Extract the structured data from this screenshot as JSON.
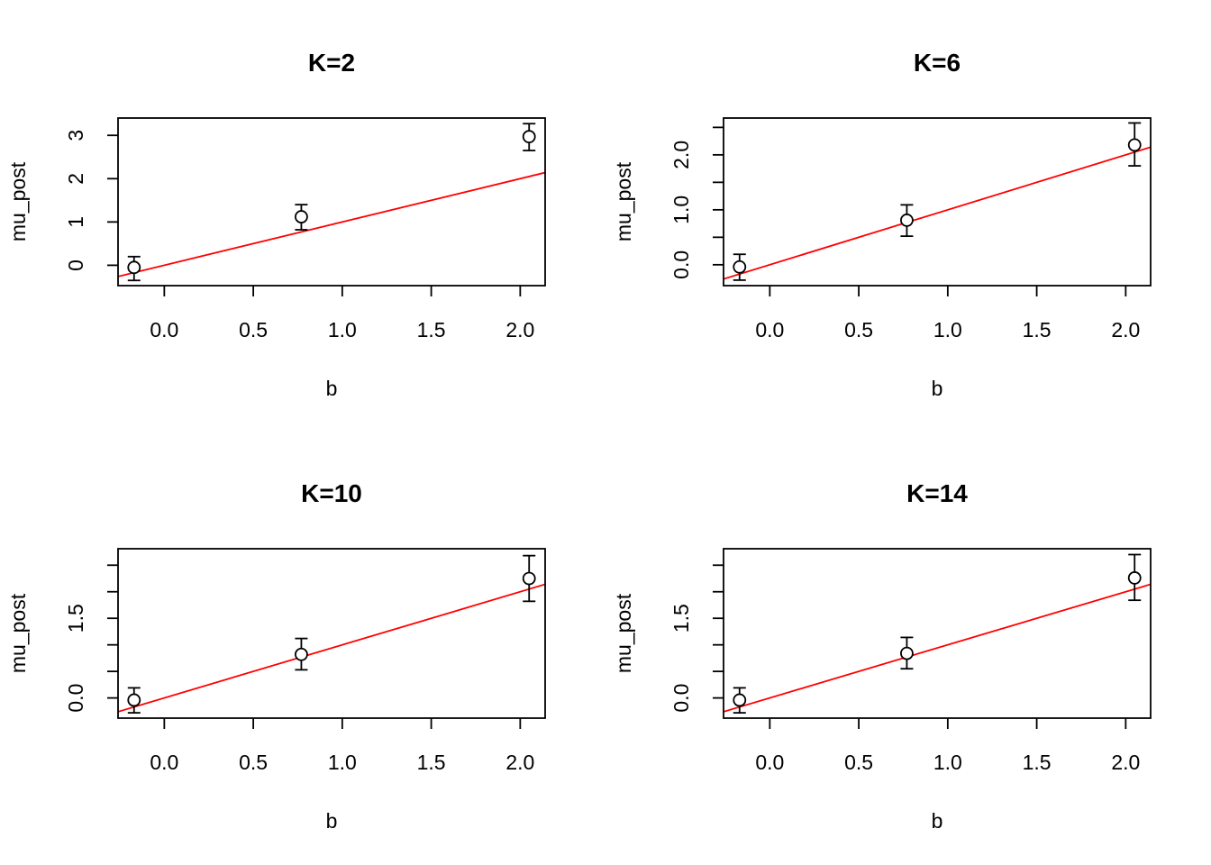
{
  "chart_data": [
    {
      "type": "scatter",
      "title": "K=2",
      "xlabel": "b",
      "ylabel": "mu_post",
      "xlim": [
        -0.26,
        2.14
      ],
      "ylim": [
        -0.47,
        3.4
      ],
      "xticks": [
        0.0,
        0.5,
        1.0,
        1.5,
        2.0
      ],
      "xtick_labels": [
        "0.0",
        "0.5",
        "1.0",
        "1.5",
        "2.0"
      ],
      "yticks": [
        0,
        1,
        2,
        3
      ],
      "ytick_labels": [
        "0",
        "1",
        "2",
        "3"
      ],
      "points": [
        {
          "x": -0.17,
          "y": -0.05,
          "lo": -0.35,
          "hi": 0.2
        },
        {
          "x": 0.77,
          "y": 1.12,
          "lo": 0.82,
          "hi": 1.4
        },
        {
          "x": 2.05,
          "y": 2.97,
          "lo": 2.65,
          "hi": 3.27
        }
      ],
      "line": {
        "intercept": 0.0,
        "slope": 1.0,
        "color": "#ff0000"
      },
      "grid": false,
      "legend": "none"
    },
    {
      "type": "scatter",
      "title": "K=6",
      "xlabel": "b",
      "ylabel": "mu_post",
      "xlim": [
        -0.26,
        2.14
      ],
      "ylim": [
        -0.38,
        2.67
      ],
      "xticks": [
        0.0,
        0.5,
        1.0,
        1.5,
        2.0
      ],
      "xtick_labels": [
        "0.0",
        "0.5",
        "1.0",
        "1.5",
        "2.0"
      ],
      "yticks": [
        0.0,
        0.5,
        1.0,
        1.5,
        2.0,
        2.5
      ],
      "ytick_labels": [
        "0.0",
        "",
        "1.0",
        "",
        "2.0",
        ""
      ],
      "points": [
        {
          "x": -0.17,
          "y": -0.04,
          "lo": -0.28,
          "hi": 0.19
        },
        {
          "x": 0.77,
          "y": 0.81,
          "lo": 0.52,
          "hi": 1.09
        },
        {
          "x": 2.05,
          "y": 2.18,
          "lo": 1.8,
          "hi": 2.58
        }
      ],
      "line": {
        "intercept": 0.0,
        "slope": 1.0,
        "color": "#ff0000"
      },
      "grid": false,
      "legend": "none"
    },
    {
      "type": "scatter",
      "title": "K=10",
      "xlabel": "b",
      "ylabel": "mu_post",
      "xlim": [
        -0.26,
        2.14
      ],
      "ylim": [
        -0.38,
        2.81
      ],
      "xticks": [
        0.0,
        0.5,
        1.0,
        1.5,
        2.0
      ],
      "xtick_labels": [
        "0.0",
        "0.5",
        "1.0",
        "1.5",
        "2.0"
      ],
      "yticks": [
        0.0,
        0.5,
        1.0,
        1.5,
        2.0,
        2.5
      ],
      "ytick_labels": [
        "0.0",
        "",
        "",
        "1.5",
        "",
        ""
      ],
      "points": [
        {
          "x": -0.17,
          "y": -0.04,
          "lo": -0.28,
          "hi": 0.19
        },
        {
          "x": 0.77,
          "y": 0.82,
          "lo": 0.53,
          "hi": 1.12
        },
        {
          "x": 2.05,
          "y": 2.25,
          "lo": 1.82,
          "hi": 2.68
        }
      ],
      "line": {
        "intercept": 0.0,
        "slope": 1.0,
        "color": "#ff0000"
      },
      "grid": false,
      "legend": "none"
    },
    {
      "type": "scatter",
      "title": "K=14",
      "xlabel": "b",
      "ylabel": "mu_post",
      "xlim": [
        -0.26,
        2.14
      ],
      "ylim": [
        -0.38,
        2.81
      ],
      "xticks": [
        0.0,
        0.5,
        1.0,
        1.5,
        2.0
      ],
      "xtick_labels": [
        "0.0",
        "0.5",
        "1.0",
        "1.5",
        "2.0"
      ],
      "yticks": [
        0.0,
        0.5,
        1.0,
        1.5,
        2.0,
        2.5
      ],
      "ytick_labels": [
        "0.0",
        "",
        "",
        "1.5",
        "",
        ""
      ],
      "points": [
        {
          "x": -0.17,
          "y": -0.04,
          "lo": -0.28,
          "hi": 0.19
        },
        {
          "x": 0.77,
          "y": 0.84,
          "lo": 0.55,
          "hi": 1.14
        },
        {
          "x": 2.05,
          "y": 2.26,
          "lo": 1.84,
          "hi": 2.7
        }
      ],
      "line": {
        "intercept": 0.0,
        "slope": 1.0,
        "color": "#ff0000"
      },
      "grid": false,
      "legend": "none"
    }
  ]
}
